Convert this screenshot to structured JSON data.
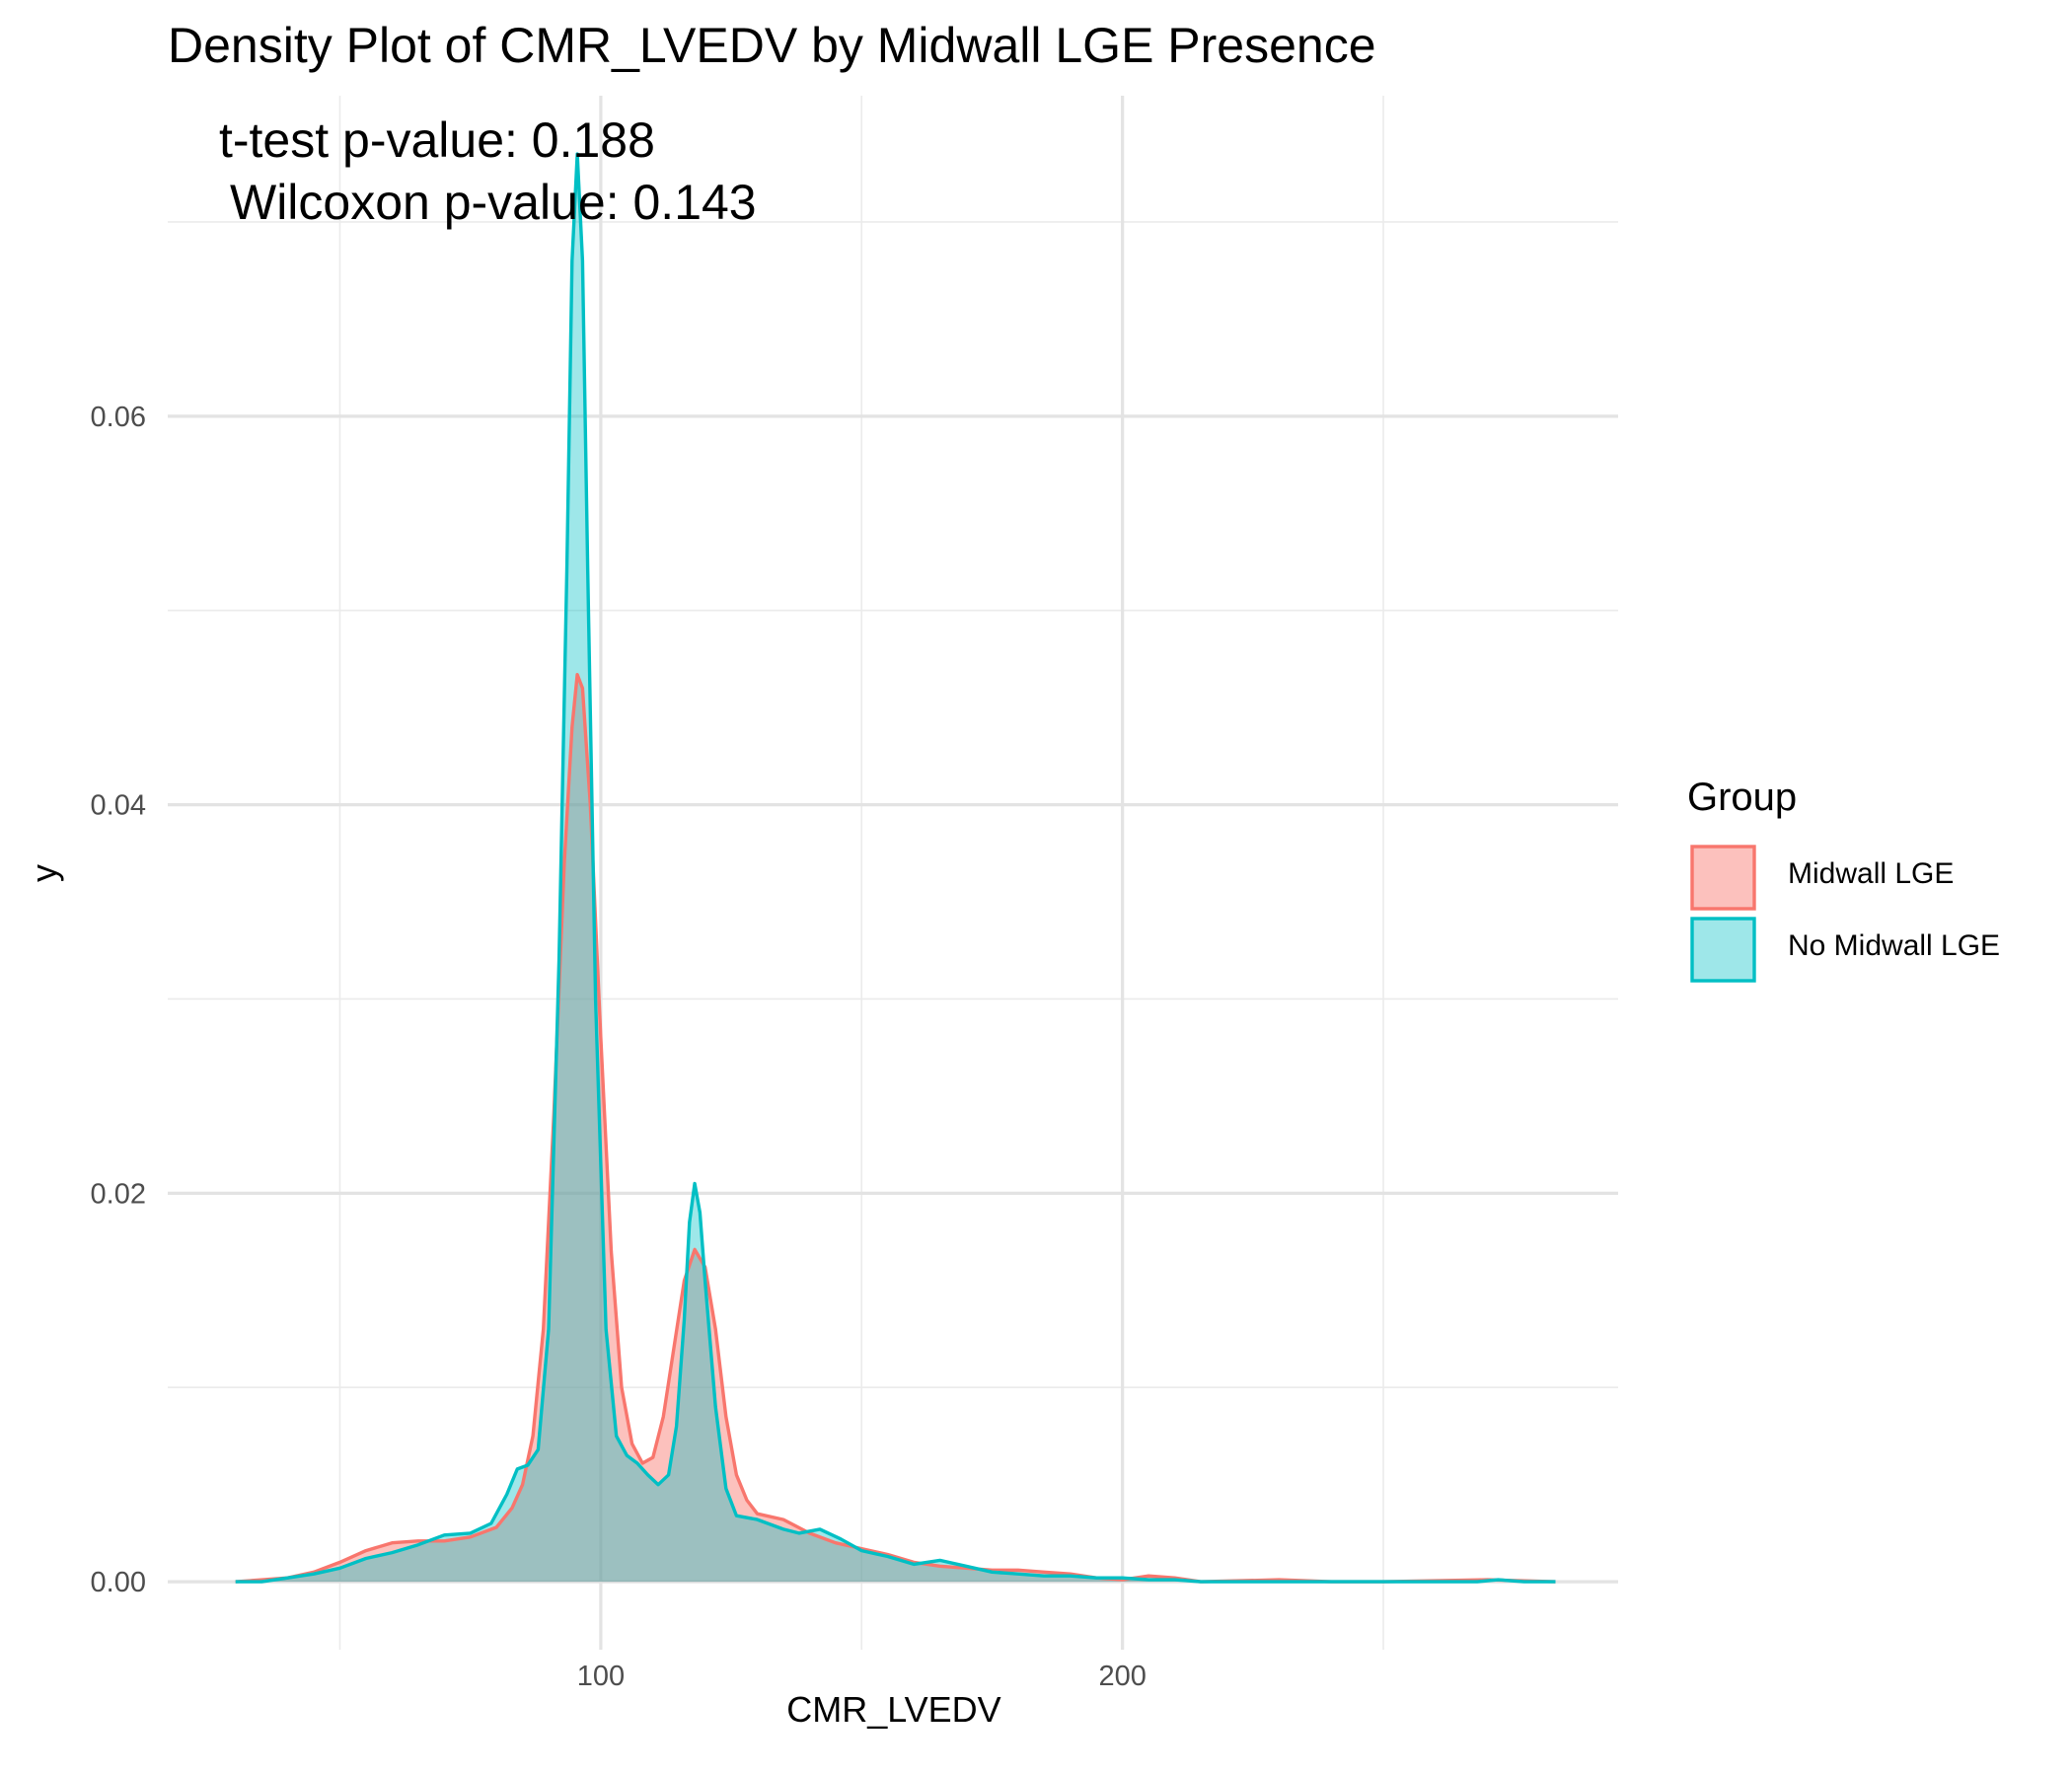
{
  "chart_data": {
    "type": "area",
    "title": "Density Plot of CMR_LVEDV by Midwall LGE Presence",
    "annotations": [
      "t-test p-value: 0.188",
      "Wilcoxon p-value: 0.143"
    ],
    "xlabel": "CMR_LVEDV",
    "ylabel": "y",
    "xlim": [
      17,
      295
    ],
    "ylim": [
      -0.0035,
      0.0765
    ],
    "x_ticks": [
      100,
      200
    ],
    "x_minor_ticks": [
      50,
      150,
      250
    ],
    "y_ticks": [
      0.0,
      0.02,
      0.04,
      0.06
    ],
    "y_tick_labels": [
      "0.00",
      "0.02",
      "0.04",
      "0.06"
    ],
    "y_minor_ticks": [
      0.01,
      0.03,
      0.05,
      0.07
    ],
    "grid": true,
    "legend": {
      "title": "Group",
      "position": "right"
    },
    "series": [
      {
        "name": "Midwall LGE",
        "line_color": "#F8766D",
        "fill_color": "#F8766D",
        "fill_opacity": 0.45,
        "points": [
          [
            30,
            0.0
          ],
          [
            40,
            0.0002
          ],
          [
            45,
            0.0005
          ],
          [
            50,
            0.001
          ],
          [
            55,
            0.0016
          ],
          [
            60,
            0.002
          ],
          [
            65,
            0.0021
          ],
          [
            70,
            0.0021
          ],
          [
            75,
            0.0023
          ],
          [
            80,
            0.0028
          ],
          [
            83,
            0.0038
          ],
          [
            85,
            0.005
          ],
          [
            87,
            0.0075
          ],
          [
            89,
            0.013
          ],
          [
            91,
            0.024
          ],
          [
            93,
            0.037
          ],
          [
            94.5,
            0.044
          ],
          [
            95.5,
            0.0467
          ],
          [
            96.5,
            0.046
          ],
          [
            98,
            0.04
          ],
          [
            100,
            0.028
          ],
          [
            102,
            0.017
          ],
          [
            104,
            0.01
          ],
          [
            106,
            0.0071
          ],
          [
            108,
            0.0061
          ],
          [
            110,
            0.0064
          ],
          [
            112,
            0.0085
          ],
          [
            114,
            0.012
          ],
          [
            116,
            0.0155
          ],
          [
            118,
            0.0171
          ],
          [
            120,
            0.0162
          ],
          [
            122,
            0.013
          ],
          [
            124,
            0.0085
          ],
          [
            126,
            0.0055
          ],
          [
            128,
            0.0042
          ],
          [
            130,
            0.0035
          ],
          [
            135,
            0.0032
          ],
          [
            140,
            0.0025
          ],
          [
            145,
            0.002
          ],
          [
            150,
            0.0017
          ],
          [
            155,
            0.0014
          ],
          [
            160,
            0.001
          ],
          [
            165,
            0.0008
          ],
          [
            170,
            0.0007
          ],
          [
            175,
            0.0006
          ],
          [
            180,
            0.0006
          ],
          [
            185,
            0.0005
          ],
          [
            190,
            0.0004
          ],
          [
            195,
            0.0002
          ],
          [
            200,
            0.0001
          ],
          [
            205,
            0.0003
          ],
          [
            210,
            0.0002
          ],
          [
            215,
            0.0
          ],
          [
            230,
            0.0001
          ],
          [
            240,
            0.0
          ],
          [
            250,
            0.0
          ],
          [
            270,
            0.0001
          ],
          [
            283,
            0.0
          ]
        ]
      },
      {
        "name": "No Midwall LGE",
        "line_color": "#00BFC4",
        "fill_color": "#00BFC4",
        "fill_opacity": 0.38,
        "points": [
          [
            30,
            0.0
          ],
          [
            35,
            0.0
          ],
          [
            40,
            0.0002
          ],
          [
            45,
            0.0004
          ],
          [
            50,
            0.0007
          ],
          [
            55,
            0.0012
          ],
          [
            60,
            0.0015
          ],
          [
            65,
            0.0019
          ],
          [
            70,
            0.0024
          ],
          [
            75,
            0.0025
          ],
          [
            79,
            0.003
          ],
          [
            82,
            0.0045
          ],
          [
            84,
            0.0058
          ],
          [
            86,
            0.006
          ],
          [
            88,
            0.0068
          ],
          [
            90,
            0.013
          ],
          [
            92,
            0.032
          ],
          [
            93.5,
            0.052
          ],
          [
            94.5,
            0.068
          ],
          [
            95.5,
            0.0735
          ],
          [
            96.5,
            0.068
          ],
          [
            97.5,
            0.052
          ],
          [
            99,
            0.03
          ],
          [
            101,
            0.013
          ],
          [
            103,
            0.0075
          ],
          [
            105,
            0.0065
          ],
          [
            107,
            0.0061
          ],
          [
            109,
            0.0055
          ],
          [
            111,
            0.005
          ],
          [
            113,
            0.0055
          ],
          [
            114.5,
            0.008
          ],
          [
            116,
            0.0135
          ],
          [
            117,
            0.0185
          ],
          [
            118,
            0.0205
          ],
          [
            119,
            0.019
          ],
          [
            120,
            0.0155
          ],
          [
            122,
            0.009
          ],
          [
            124,
            0.0048
          ],
          [
            126,
            0.0034
          ],
          [
            130,
            0.0032
          ],
          [
            135,
            0.0027
          ],
          [
            138,
            0.0025
          ],
          [
            142,
            0.0027
          ],
          [
            146,
            0.0022
          ],
          [
            150,
            0.0016
          ],
          [
            155,
            0.0013
          ],
          [
            160,
            0.0009
          ],
          [
            165,
            0.0011
          ],
          [
            170,
            0.0008
          ],
          [
            175,
            0.0005
          ],
          [
            180,
            0.0004
          ],
          [
            185,
            0.0003
          ],
          [
            190,
            0.0003
          ],
          [
            195,
            0.0002
          ],
          [
            200,
            0.0002
          ],
          [
            205,
            0.0001
          ],
          [
            210,
            0.0001
          ],
          [
            215,
            0.0
          ],
          [
            230,
            0.0
          ],
          [
            245,
            0.0
          ],
          [
            255,
            0.0
          ],
          [
            268,
            0.0
          ],
          [
            272,
            0.0001
          ],
          [
            277,
            0.0
          ],
          [
            283,
            0.0
          ]
        ]
      }
    ]
  }
}
